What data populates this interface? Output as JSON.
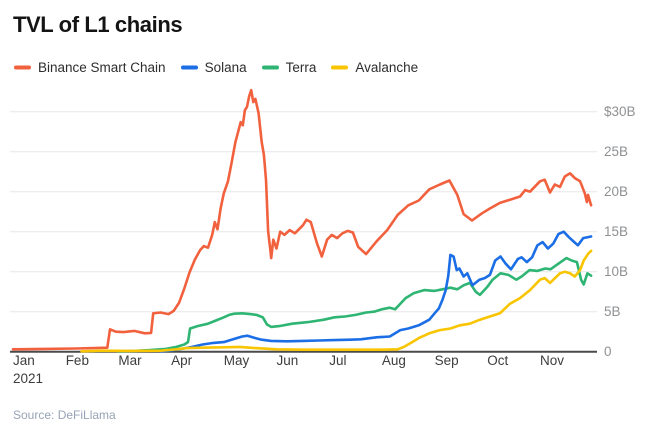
{
  "title": "TVL of L1 chains",
  "source": "Source: DeFiLlama",
  "legend": [
    {
      "label": "Binance Smart Chain",
      "color": "#F2613E"
    },
    {
      "label": "Solana",
      "color": "#1B6EE5"
    },
    {
      "label": "Terra",
      "color": "#2FB573"
    },
    {
      "label": "Avalanche",
      "color": "#F8C500"
    }
  ],
  "chart_data": {
    "type": "line",
    "title": "TVL of L1 chains",
    "source": "Source: DeFiLlama",
    "x_unit": "fractional months since Jan 1 2021 (0=Jan1 ... 10=Nov1)",
    "y_unit": "TVL in billions USD",
    "xlim": [
      0,
      11
    ],
    "ylim": [
      0,
      33
    ],
    "grid": "horizontal",
    "legend_position": "top",
    "x_tick_labels": [
      "Jan",
      "Feb",
      "Mar",
      "Apr",
      "May",
      "Jun",
      "Jul",
      "Aug",
      "Sep",
      "Oct",
      "Nov"
    ],
    "x_sub_label": "2021",
    "y_ticks": [
      0,
      5,
      10,
      15,
      20,
      25,
      30
    ],
    "y_tick_labels": [
      "0",
      "5B",
      "10B",
      "15B",
      "20B",
      "25B",
      "$30B"
    ],
    "series": [
      {
        "name": "Binance Smart Chain",
        "color": "#F2613E",
        "points": [
          [
            0,
            0.3
          ],
          [
            0.6,
            0.35
          ],
          [
            1.2,
            0.4
          ],
          [
            1.79,
            0.5
          ],
          [
            1.84,
            2.8
          ],
          [
            1.95,
            2.5
          ],
          [
            2.1,
            2.45
          ],
          [
            2.3,
            2.6
          ],
          [
            2.5,
            2.3
          ],
          [
            2.62,
            2.35
          ],
          [
            2.66,
            4.8
          ],
          [
            2.8,
            4.9
          ],
          [
            2.95,
            4.7
          ],
          [
            3.05,
            5.1
          ],
          [
            3.15,
            6.1
          ],
          [
            3.25,
            7.9
          ],
          [
            3.35,
            9.9
          ],
          [
            3.45,
            11.5
          ],
          [
            3.55,
            12.7
          ],
          [
            3.62,
            13.2
          ],
          [
            3.7,
            13.0
          ],
          [
            3.78,
            14.6
          ],
          [
            3.83,
            16.2
          ],
          [
            3.88,
            15.3
          ],
          [
            3.94,
            17.9
          ],
          [
            4.0,
            19.8
          ],
          [
            4.08,
            21.3
          ],
          [
            4.15,
            23.7
          ],
          [
            4.22,
            26.2
          ],
          [
            4.28,
            27.7
          ],
          [
            4.32,
            28.7
          ],
          [
            4.36,
            28.3
          ],
          [
            4.4,
            30.2
          ],
          [
            4.44,
            30.6
          ],
          [
            4.48,
            31.9
          ],
          [
            4.52,
            32.7
          ],
          [
            4.56,
            31.2
          ],
          [
            4.6,
            31.6
          ],
          [
            4.66,
            29.8
          ],
          [
            4.72,
            26.2
          ],
          [
            4.76,
            24.6
          ],
          [
            4.8,
            21.5
          ],
          [
            4.84,
            15.1
          ],
          [
            4.86,
            14.0
          ],
          [
            4.88,
            12.9
          ],
          [
            4.9,
            11.7
          ],
          [
            4.94,
            14.0
          ],
          [
            5.0,
            12.9
          ],
          [
            5.07,
            15.0
          ],
          [
            5.15,
            14.6
          ],
          [
            5.25,
            15.2
          ],
          [
            5.35,
            14.8
          ],
          [
            5.5,
            15.8
          ],
          [
            5.57,
            16.5
          ],
          [
            5.65,
            16.2
          ],
          [
            5.77,
            13.5
          ],
          [
            5.86,
            11.9
          ],
          [
            5.96,
            14.0
          ],
          [
            6.05,
            14.6
          ],
          [
            6.15,
            14.2
          ],
          [
            6.25,
            14.8
          ],
          [
            6.35,
            15.1
          ],
          [
            6.45,
            14.9
          ],
          [
            6.55,
            13.1
          ],
          [
            6.7,
            12.2
          ],
          [
            6.9,
            13.8
          ],
          [
            7.1,
            15.2
          ],
          [
            7.3,
            17.1
          ],
          [
            7.5,
            18.3
          ],
          [
            7.7,
            18.9
          ],
          [
            7.9,
            20.3
          ],
          [
            8.1,
            20.9
          ],
          [
            8.28,
            21.4
          ],
          [
            8.43,
            19.6
          ],
          [
            8.55,
            17.2
          ],
          [
            8.71,
            16.4
          ],
          [
            8.9,
            17.3
          ],
          [
            9.05,
            17.9
          ],
          [
            9.24,
            18.6
          ],
          [
            9.43,
            19.0
          ],
          [
            9.62,
            19.4
          ],
          [
            9.72,
            20.2
          ],
          [
            9.81,
            20.0
          ],
          [
            10.0,
            21.3
          ],
          [
            10.09,
            21.5
          ],
          [
            10.19,
            19.9
          ],
          [
            10.28,
            20.9
          ],
          [
            10.38,
            20.6
          ],
          [
            10.47,
            21.9
          ],
          [
            10.57,
            22.3
          ],
          [
            10.66,
            21.7
          ],
          [
            10.76,
            21.3
          ],
          [
            10.85,
            19.8
          ],
          [
            10.89,
            18.7
          ],
          [
            10.91,
            19.6
          ],
          [
            10.97,
            18.3
          ]
        ]
      },
      {
        "name": "Terra",
        "color": "#2FB573",
        "points": [
          [
            2.0,
            0.05
          ],
          [
            2.3,
            0.1
          ],
          [
            2.6,
            0.2
          ],
          [
            2.9,
            0.35
          ],
          [
            3.1,
            0.6
          ],
          [
            3.25,
            0.9
          ],
          [
            3.32,
            1.2
          ],
          [
            3.36,
            2.9
          ],
          [
            3.5,
            3.2
          ],
          [
            3.7,
            3.5
          ],
          [
            3.85,
            3.9
          ],
          [
            4.0,
            4.3
          ],
          [
            4.1,
            4.6
          ],
          [
            4.2,
            4.75
          ],
          [
            4.35,
            4.8
          ],
          [
            4.5,
            4.7
          ],
          [
            4.62,
            4.6
          ],
          [
            4.7,
            4.4
          ],
          [
            4.74,
            4.3
          ],
          [
            4.82,
            3.4
          ],
          [
            4.9,
            3.1
          ],
          [
            5.05,
            3.2
          ],
          [
            5.3,
            3.5
          ],
          [
            5.6,
            3.7
          ],
          [
            5.9,
            4.0
          ],
          [
            6.1,
            4.3
          ],
          [
            6.3,
            4.4
          ],
          [
            6.5,
            4.6
          ],
          [
            6.7,
            4.9
          ],
          [
            6.85,
            5.0
          ],
          [
            7.0,
            5.3
          ],
          [
            7.15,
            5.5
          ],
          [
            7.25,
            5.3
          ],
          [
            7.45,
            6.7
          ],
          [
            7.6,
            7.3
          ],
          [
            7.8,
            7.7
          ],
          [
            8.0,
            7.6
          ],
          [
            8.15,
            7.8
          ],
          [
            8.3,
            8.0
          ],
          [
            8.43,
            7.8
          ],
          [
            8.55,
            8.3
          ],
          [
            8.67,
            8.6
          ],
          [
            8.78,
            7.5
          ],
          [
            8.86,
            7.1
          ],
          [
            9.0,
            8.1
          ],
          [
            9.1,
            9.0
          ],
          [
            9.25,
            9.8
          ],
          [
            9.4,
            9.6
          ],
          [
            9.55,
            9.0
          ],
          [
            9.65,
            9.4
          ],
          [
            9.8,
            10.2
          ],
          [
            9.95,
            10.1
          ],
          [
            10.1,
            10.4
          ],
          [
            10.2,
            10.3
          ],
          [
            10.35,
            11.0
          ],
          [
            10.5,
            11.7
          ],
          [
            10.6,
            11.4
          ],
          [
            10.7,
            11.2
          ],
          [
            10.78,
            9.0
          ],
          [
            10.83,
            8.4
          ],
          [
            10.9,
            9.8
          ],
          [
            10.97,
            9.5
          ]
        ]
      },
      {
        "name": "Solana",
        "color": "#1B6EE5",
        "points": [
          [
            2.8,
            0.05
          ],
          [
            3.0,
            0.15
          ],
          [
            3.2,
            0.35
          ],
          [
            3.4,
            0.6
          ],
          [
            3.6,
            0.9
          ],
          [
            3.8,
            1.1
          ],
          [
            4.0,
            1.2
          ],
          [
            4.2,
            1.6
          ],
          [
            4.35,
            1.9
          ],
          [
            4.45,
            2.0
          ],
          [
            4.6,
            1.7
          ],
          [
            4.72,
            1.5
          ],
          [
            4.9,
            1.35
          ],
          [
            5.2,
            1.3
          ],
          [
            5.5,
            1.35
          ],
          [
            5.8,
            1.4
          ],
          [
            6.1,
            1.45
          ],
          [
            6.4,
            1.5
          ],
          [
            6.6,
            1.55
          ],
          [
            6.9,
            1.8
          ],
          [
            7.15,
            1.9
          ],
          [
            7.35,
            2.7
          ],
          [
            7.5,
            2.9
          ],
          [
            7.7,
            3.3
          ],
          [
            7.9,
            4.0
          ],
          [
            8.0,
            4.8
          ],
          [
            8.08,
            5.4
          ],
          [
            8.15,
            6.5
          ],
          [
            8.21,
            7.7
          ],
          [
            8.26,
            9.5
          ],
          [
            8.3,
            12.1
          ],
          [
            8.36,
            11.9
          ],
          [
            8.42,
            10.2
          ],
          [
            8.47,
            10.4
          ],
          [
            8.55,
            9.4
          ],
          [
            8.62,
            9.8
          ],
          [
            8.72,
            8.3
          ],
          [
            8.85,
            9.0
          ],
          [
            8.95,
            9.2
          ],
          [
            9.05,
            9.6
          ],
          [
            9.15,
            11.4
          ],
          [
            9.25,
            11.9
          ],
          [
            9.35,
            11.0
          ],
          [
            9.45,
            10.3
          ],
          [
            9.58,
            11.6
          ],
          [
            9.65,
            11.8
          ],
          [
            9.75,
            11.2
          ],
          [
            9.85,
            11.8
          ],
          [
            9.95,
            13.3
          ],
          [
            10.05,
            13.7
          ],
          [
            10.15,
            12.9
          ],
          [
            10.25,
            13.5
          ],
          [
            10.35,
            14.7
          ],
          [
            10.45,
            15.0
          ],
          [
            10.55,
            14.3
          ],
          [
            10.65,
            13.7
          ],
          [
            10.72,
            13.3
          ],
          [
            10.82,
            14.2
          ],
          [
            10.97,
            14.4
          ]
        ]
      },
      {
        "name": "Avalanche",
        "color": "#F8C500",
        "points": [
          [
            1.3,
            0.05
          ],
          [
            1.7,
            0.12
          ],
          [
            2.2,
            0.1
          ],
          [
            2.8,
            0.12
          ],
          [
            3.1,
            0.3
          ],
          [
            3.3,
            0.45
          ],
          [
            3.6,
            0.5
          ],
          [
            4.0,
            0.55
          ],
          [
            4.3,
            0.6
          ],
          [
            4.6,
            0.45
          ],
          [
            5.0,
            0.3
          ],
          [
            5.5,
            0.25
          ],
          [
            6.0,
            0.25
          ],
          [
            6.5,
            0.25
          ],
          [
            7.0,
            0.25
          ],
          [
            7.3,
            0.3
          ],
          [
            7.42,
            0.6
          ],
          [
            7.55,
            1.1
          ],
          [
            7.7,
            1.7
          ],
          [
            7.9,
            2.3
          ],
          [
            8.1,
            2.7
          ],
          [
            8.3,
            2.9
          ],
          [
            8.48,
            3.3
          ],
          [
            8.67,
            3.5
          ],
          [
            8.86,
            4.0
          ],
          [
            9.05,
            4.4
          ],
          [
            9.24,
            4.8
          ],
          [
            9.43,
            6.0
          ],
          [
            9.62,
            6.7
          ],
          [
            9.81,
            7.7
          ],
          [
            10.0,
            9.0
          ],
          [
            10.09,
            9.2
          ],
          [
            10.19,
            8.6
          ],
          [
            10.38,
            9.8
          ],
          [
            10.47,
            10.0
          ],
          [
            10.57,
            9.8
          ],
          [
            10.66,
            9.4
          ],
          [
            10.76,
            10.2
          ],
          [
            10.83,
            11.4
          ],
          [
            10.92,
            12.3
          ],
          [
            10.97,
            12.6
          ]
        ]
      }
    ]
  },
  "style": {
    "grid_color": "#e7e7e7",
    "zero_axis_color": "#4a4a4a",
    "y_label_color": "#8f9193",
    "x_label_color": "#3d3d3d"
  }
}
